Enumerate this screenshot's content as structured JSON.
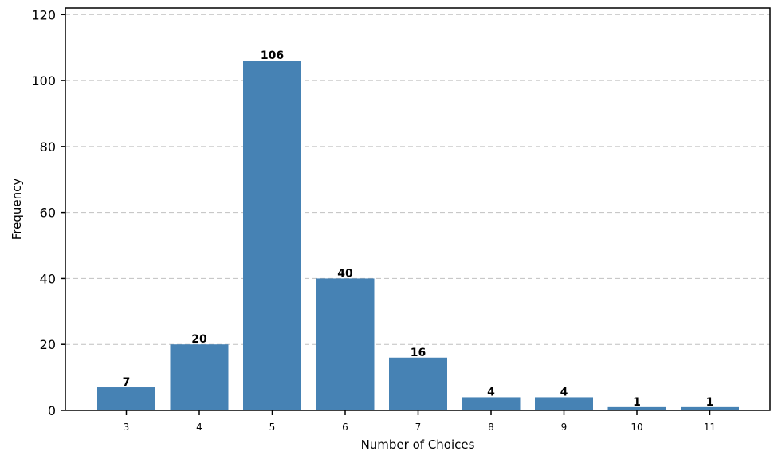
{
  "chart_data": {
    "type": "bar",
    "title": "",
    "xlabel": "Number of Choices",
    "ylabel": "Frequency",
    "categories": [
      "3",
      "4",
      "5",
      "6",
      "7",
      "8",
      "9",
      "10",
      "11"
    ],
    "values": [
      7,
      20,
      106,
      40,
      16,
      4,
      4,
      1,
      1
    ],
    "data_labels": [
      "7",
      "20",
      "106",
      "40",
      "16",
      "4",
      "4",
      "1",
      "1"
    ],
    "ylim": [
      0,
      122
    ],
    "yticks": [
      0,
      20,
      40,
      60,
      80,
      100,
      120
    ],
    "grid": "y-dashed",
    "legend": "none",
    "bar_color": "#4682B4",
    "grid_color": "#C0C0C0"
  }
}
